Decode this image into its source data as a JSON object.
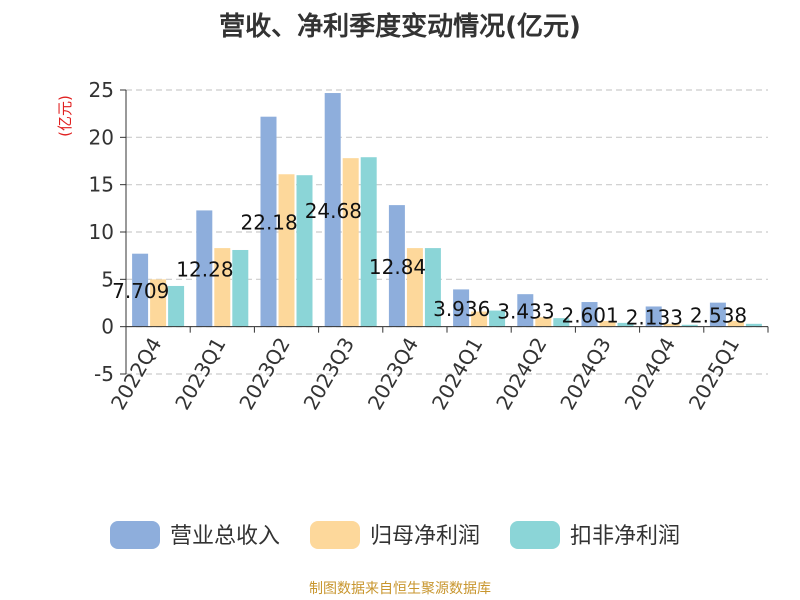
{
  "chart_data": {
    "type": "bar",
    "title": "营收、净利季度变动情况(亿元)",
    "ylabel": "(亿元)",
    "xlabel": "",
    "ylim": [
      -5,
      25
    ],
    "yticks": [
      -5,
      0,
      5,
      10,
      15,
      20,
      25
    ],
    "grid": true,
    "legend_position": "bottom",
    "categories": [
      "2022Q4",
      "2023Q1",
      "2023Q2",
      "2023Q3",
      "2023Q4",
      "2024Q1",
      "2024Q2",
      "2024Q3",
      "2024Q4",
      "2025Q1"
    ],
    "series": [
      {
        "name": "营业总收入",
        "color": "#8eaedc",
        "values": [
          7.709,
          12.28,
          22.18,
          24.68,
          12.84,
          3.936,
          3.433,
          2.601,
          2.133,
          2.538
        ],
        "labels": [
          "7.709",
          "12.28",
          "22.18",
          "24.68",
          "12.84",
          "3.936",
          "3.433",
          "2.601",
          "2.133",
          "2.538"
        ]
      },
      {
        "name": "归母净利润",
        "color": "#fdd89b",
        "values": [
          5.0,
          8.3,
          16.1,
          17.8,
          8.3,
          1.6,
          1.0,
          0.6,
          0.3,
          0.6
        ]
      },
      {
        "name": "扣非净利润",
        "color": "#8bd5d7",
        "values": [
          4.3,
          8.1,
          16.0,
          17.9,
          8.3,
          1.7,
          0.9,
          0.4,
          0.2,
          0.3
        ]
      }
    ]
  },
  "source_note": "制图数据来自恒生聚源数据库"
}
